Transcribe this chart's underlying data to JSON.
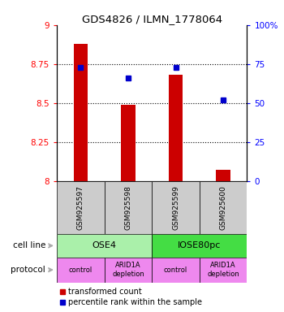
{
  "title": "GDS4826 / ILMN_1778064",
  "samples": [
    "GSM925597",
    "GSM925598",
    "GSM925599",
    "GSM925600"
  ],
  "bar_values": [
    8.88,
    8.49,
    8.68,
    8.07
  ],
  "percentile_values": [
    73,
    66,
    73,
    52
  ],
  "ylim_left": [
    8.0,
    9.0
  ],
  "ylim_right": [
    0,
    100
  ],
  "yticks_left": [
    8.0,
    8.25,
    8.5,
    8.75,
    9.0
  ],
  "yticks_right": [
    0,
    25,
    50,
    75,
    100
  ],
  "ytick_labels_left": [
    "8",
    "8.25",
    "8.5",
    "8.75",
    "9"
  ],
  "ytick_labels_right": [
    "0",
    "25",
    "50",
    "75",
    "100%"
  ],
  "grid_lines": [
    8.25,
    8.5,
    8.75
  ],
  "bar_color": "#cc0000",
  "dot_color": "#0000cc",
  "cell_line_groups": [
    {
      "label": "OSE4",
      "start": 0,
      "end": 2,
      "color": "#aaf0aa"
    },
    {
      "label": "IOSE80pc",
      "start": 2,
      "end": 4,
      "color": "#44dd44"
    }
  ],
  "protocols": [
    "control",
    "ARID1A\ndepletion",
    "control",
    "ARID1A\ndepletion"
  ],
  "protocol_color": "#ee88ee",
  "sample_bg_color": "#cccccc",
  "legend_bar_label": "transformed count",
  "legend_dot_label": "percentile rank within the sample",
  "cell_line_label": "cell line",
  "protocol_label": "protocol",
  "arrow_color": "#aaaaaa",
  "bar_width": 0.3
}
